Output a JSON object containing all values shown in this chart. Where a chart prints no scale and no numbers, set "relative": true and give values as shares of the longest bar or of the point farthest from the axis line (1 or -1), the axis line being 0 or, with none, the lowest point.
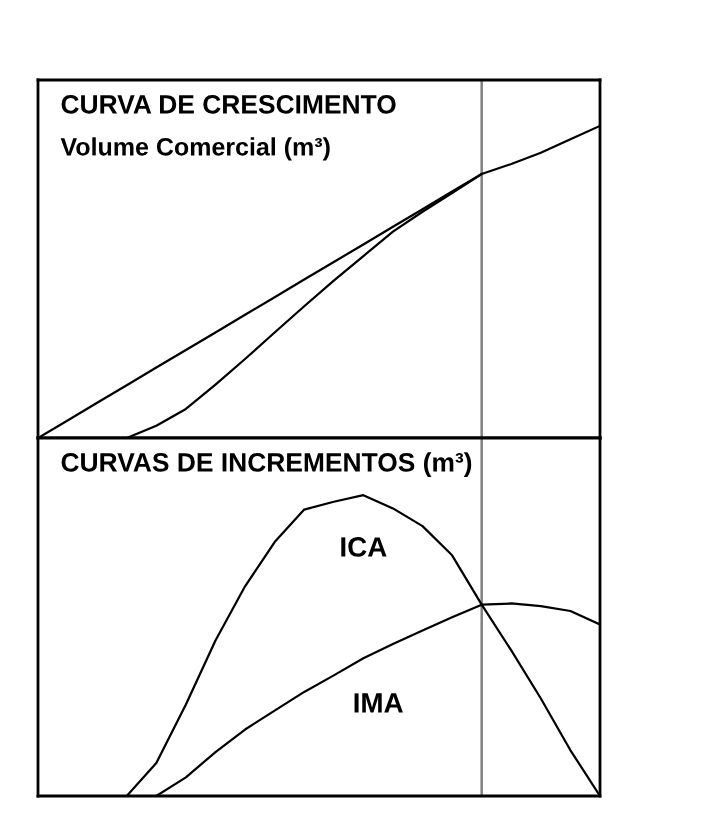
{
  "chart_data": [
    {
      "type": "line",
      "title": "CURVA DE CRESCIMENTO",
      "subtitle": "Volume Comercial (m³)",
      "relative": true,
      "categories": [
        null,
        null,
        null,
        null,
        null,
        null,
        null,
        null,
        null,
        null,
        null,
        null,
        null,
        null,
        null,
        null,
        null,
        null,
        null,
        null
      ],
      "series": [
        {
          "color": "#000000",
          "values": [
            0,
            0.056,
            0.113,
            0.169,
            0.226,
            0.282,
            0.338,
            0.395,
            0.451,
            0.508,
            0.564,
            0.62,
            0.677,
            0.733,
            0.79,
            0.846,
            null,
            null,
            null,
            null
          ]
        },
        {
          "color": "#000000",
          "values": [
            null,
            null,
            null,
            0,
            0.039,
            0.093,
            0.171,
            0.253,
            0.338,
            0.422,
            0.504,
            0.583,
            0.661,
            0.725,
            0.785,
            0.846,
            0.878,
            0.914,
            0.957,
            1
          ]
        }
      ]
    },
    {
      "type": "line",
      "title": "CURVAS DE INCREMENTOS (m³)",
      "relative": true,
      "categories": [
        null,
        null,
        null,
        null,
        null,
        null,
        null,
        null,
        null,
        null,
        null,
        null,
        null,
        null,
        null,
        null,
        null,
        null,
        null,
        null
      ],
      "series": [
        {
          "name": "ICA",
          "color": "#000000",
          "values": [
            null,
            null,
            null,
            0,
            0.11,
            0.304,
            0.517,
            0.697,
            0.844,
            0.952,
            0.978,
            1,
            0.956,
            0.897,
            0.8,
            0.636,
            0.484,
            0.324,
            0.152,
            0
          ]
        },
        {
          "name": "IMA",
          "color": "#000000",
          "values": [
            null,
            null,
            null,
            null,
            0,
            0.062,
            0.146,
            0.221,
            0.284,
            0.346,
            0.401,
            0.458,
            0.505,
            0.55,
            0.594,
            0.636,
            0.64,
            0.631,
            0.615,
            0.57
          ]
        }
      ]
    }
  ]
}
